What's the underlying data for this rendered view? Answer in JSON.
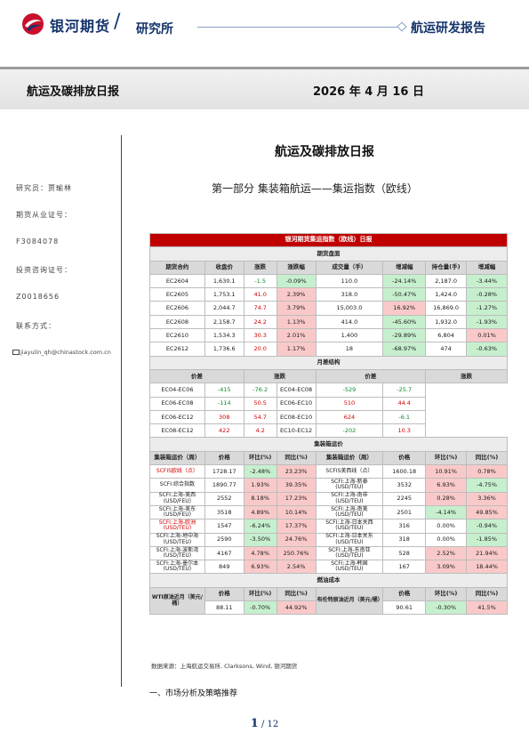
{
  "header": {
    "brand": "银河期货",
    "institute": "研究所",
    "report_type": "航运研发报告"
  },
  "band": {
    "title": "航运及碳排放日报",
    "date": "2026 年 4 月 16 日"
  },
  "sidebar": {
    "researcher": "研究员：贾瑜林",
    "qual_label": "期货从业证号：",
    "qual_no": "F3084078",
    "invest_label": "投资咨询证号：",
    "invest_no": "Z0018656",
    "contact_label": "联系方式：",
    "email": "jiayulin_qh@chinastock.com.cn"
  },
  "main_title": "航运及碳排放日报",
  "section_title": "第一部分    集装箱航运——集运指数（欧线）",
  "table": {
    "title": "银河期货集运指数（欧线）日报",
    "sec_futures": "期货盘面",
    "futures_cols": [
      "期货合约",
      "收盘价",
      "涨跌",
      "涨跌幅",
      "成交量（手）",
      "增减幅",
      "持仓量(手)",
      "增减幅"
    ],
    "futures_rows": [
      [
        "EC2604",
        "1,630.1",
        "-1.5",
        "-0.09%",
        "110.0",
        "-24.14%",
        "2,187.0",
        "-3.44%"
      ],
      [
        "EC2605",
        "1,753.1",
        "41.0",
        "2.39%",
        "318.0",
        "-50.47%",
        "1,424.0",
        "-0.28%"
      ],
      [
        "EC2606",
        "2,044.7",
        "74.7",
        "3.79%",
        "15,003.0",
        "16.92%",
        "16,869.0",
        "-1.27%"
      ],
      [
        "EC2608",
        "2,158.7",
        "24.2",
        "1.13%",
        "414.0",
        "-45.60%",
        "1,932.0",
        "-1.93%"
      ],
      [
        "EC2610",
        "1,534.3",
        "30.3",
        "2.01%",
        "1,400",
        "-29.89%",
        "6,804",
        "0.01%"
      ],
      [
        "EC2612",
        "1,736.6",
        "20.0",
        "1.17%",
        "18",
        "-68.97%",
        "474",
        "-0.63%"
      ]
    ],
    "sec_spread": "月差结构",
    "spread_cols": [
      "价差",
      "涨跌",
      "价差",
      "涨跌"
    ],
    "spread_rows": [
      [
        "EC04-EC06",
        "-415",
        "-76.2",
        "EC04-EC08",
        "-529",
        "-25.7"
      ],
      [
        "EC06-EC08",
        "-114",
        "50.5",
        "EC06-EC10",
        "510",
        "44.4"
      ],
      [
        "EC06-EC12",
        "308",
        "54.7",
        "EC08-EC10",
        "624",
        "-6.1"
      ],
      [
        "EC08-EC12",
        "422",
        "4.2",
        "EC10-EC12",
        "-202",
        "10.3"
      ]
    ],
    "sec_freight": "集装箱运价",
    "freight_cols": [
      "集装箱运价（周）",
      "价格",
      "环比(%)",
      "同比(%)",
      "集装箱运价（周）",
      "价格",
      "环比(%)",
      "同比(%)"
    ],
    "freight_rows": [
      [
        "SCFIS欧线（点）",
        "1728.17",
        "-2.48%",
        "23.23%",
        "SCFIS美西线（点）",
        "1600.18",
        "10.91%",
        "0.78%"
      ],
      [
        "SCFI:综合指数",
        "1890.77",
        "1.93%",
        "39.35%",
        "SCFI:上海-新泰 (USD/TEU)",
        "3532",
        "6.93%",
        "-4.75%"
      ],
      [
        "SCFI:上海-美西 (USD/FEU)",
        "2552",
        "8.18%",
        "17.23%",
        "SCFI:上海-南非 (USD/TEU)",
        "2245",
        "0.28%",
        "3.36%"
      ],
      [
        "SCFI:上海-美东 (USD/FEU)",
        "3518",
        "4.89%",
        "10.14%",
        "SCFI:上海-南美 (USD/TEU)",
        "2501",
        "-4.14%",
        "49.85%"
      ],
      [
        "SCFI:上海-欧洲 (USD/TEU)",
        "1547",
        "-6.24%",
        "17.37%",
        "SCFI:上海-日本关西 (USD/TEU)",
        "316",
        "0.00%",
        "-0.94%"
      ],
      [
        "SCFI:上海-地中海 (USD/TEU)",
        "2590",
        "-3.50%",
        "24.76%",
        "SCFI:上海-日本关东 (USD/TEU)",
        "318",
        "0.00%",
        "-1.85%"
      ],
      [
        "SCFI:上海-波斯湾 (USD/TEU)",
        "4167",
        "4.78%",
        "250.76%",
        "SCFI:上海-东南亚 (USD/TEU)",
        "528",
        "2.52%",
        "21.94%"
      ],
      [
        "SCFI:上海-墨尔本 (USD/TEU)",
        "849",
        "6.93%",
        "2.54%",
        "SCFI:上海-韩国 (USD/TEU)",
        "167",
        "3.09%",
        "18.44%"
      ]
    ],
    "sec_fuel": "燃油成本",
    "fuel_cols": [
      "WTI原油近月（美元/桶）",
      "价格",
      "环比(%)",
      "同比(%)",
      "布伦特原油近月（美元/桶）",
      "价格",
      "环比(%)",
      "同比(%)"
    ],
    "fuel_row": [
      "88.11",
      "-0.70%",
      "44.92%",
      "90.61",
      "-0.30%",
      "41.5%"
    ]
  },
  "source": "数据来源：上海航运交易所, Clarksons, Wind, 银河期货",
  "subsection": "一、市场分析及策略推荐",
  "page": {
    "current": "1",
    "sep": " / ",
    "total": "12"
  },
  "colors": {
    "brand_blue": "#14336b",
    "header_red": "#c00000",
    "up_bg": "#f9c9c9",
    "down_bg": "#c6efce"
  }
}
